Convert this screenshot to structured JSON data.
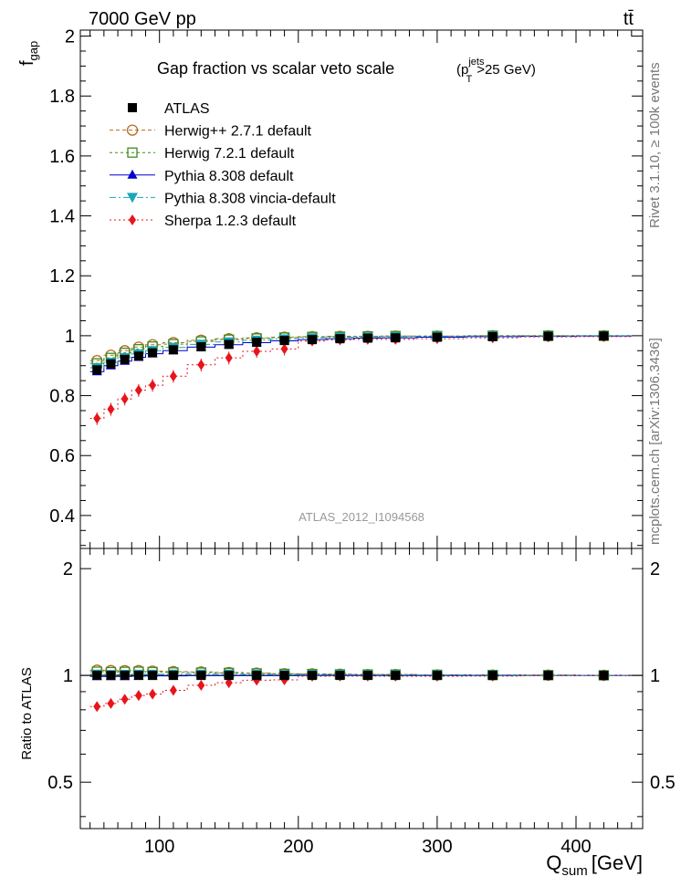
{
  "header": {
    "left": "7000 GeV pp",
    "right": "tt̄"
  },
  "side_texts": {
    "rivet": "Rivet 3.1.10, ≥ 100k events",
    "mcplots": "mcplots.cern.ch [arXiv:1306.3436]"
  },
  "legend": {
    "title": "Gap fraction vs scalar veto scale",
    "cut_p": "(p",
    "cut_sup": "jets",
    "cut_sub": "T",
    "cut_tail": ">25 GeV)"
  },
  "chart_data": {
    "type": "line",
    "watermark": "ATLAS_2012_I1094568",
    "x": [
      55,
      65,
      75,
      85,
      95,
      110,
      130,
      150,
      170,
      190,
      210,
      230,
      250,
      270,
      300,
      340,
      380,
      420
    ],
    "xlabel": "Q",
    "xlabel_sub": "sum",
    "xlabel_unit": "[GeV]",
    "xlim": [
      43,
      448
    ],
    "xticks": [
      100,
      200,
      300,
      400
    ],
    "main": {
      "ylabel": "f",
      "ylabel_sub": "gap",
      "ylim": [
        0.29,
        2.02
      ],
      "yticks": [
        0.4,
        0.6,
        0.8,
        1,
        1.2,
        1.4,
        1.6,
        1.8,
        2
      ]
    },
    "ratio": {
      "ylabel": "Ratio to ATLAS",
      "ylim": [
        0.37,
        2.28
      ],
      "yticks": [
        0.5,
        1,
        2
      ]
    },
    "series": [
      {
        "name": "ATLAS",
        "color": "#000000",
        "marker": "square-filled",
        "values": [
          0.886,
          0.906,
          0.921,
          0.932,
          0.943,
          0.953,
          0.963,
          0.971,
          0.978,
          0.984,
          0.987,
          0.99,
          0.992,
          0.993,
          0.995,
          0.997,
          0.998,
          0.999
        ]
      },
      {
        "name": "Herwig++ 2.7.1 default",
        "color": "#b86a1e",
        "marker": "circle-open",
        "values": [
          0.917,
          0.935,
          0.95,
          0.962,
          0.97,
          0.977,
          0.985,
          0.99,
          0.993,
          0.995,
          0.997,
          0.998,
          0.998,
          0.999,
          0.999,
          1.0,
          1.0,
          1.0
        ]
      },
      {
        "name": "Herwig 7.2.1 default",
        "color": "#3d8c1e",
        "marker": "square-open",
        "values": [
          0.908,
          0.926,
          0.943,
          0.955,
          0.964,
          0.972,
          0.981,
          0.987,
          0.991,
          0.994,
          0.996,
          0.997,
          0.998,
          0.999,
          0.999,
          1.0,
          1.0,
          1.0
        ]
      },
      {
        "name": "Pythia 8.308 default",
        "color": "#0000cc",
        "marker": "triangle-up",
        "values": [
          0.88,
          0.9,
          0.915,
          0.928,
          0.94,
          0.95,
          0.962,
          0.97,
          0.977,
          0.983,
          0.987,
          0.99,
          0.992,
          0.993,
          0.995,
          0.997,
          0.998,
          0.999
        ]
      },
      {
        "name": "Pythia 8.308 vincia-default",
        "color": "#1aa6b8",
        "marker": "triangle-down",
        "values": [
          0.893,
          0.911,
          0.927,
          0.939,
          0.95,
          0.961,
          0.971,
          0.979,
          0.985,
          0.989,
          0.993,
          0.995,
          0.996,
          0.997,
          0.998,
          0.999,
          0.999,
          1.0
        ]
      },
      {
        "name": "Sherpa 1.2.3 default",
        "color": "#e8141c",
        "marker": "diamond",
        "values": [
          0.724,
          0.755,
          0.789,
          0.818,
          0.835,
          0.865,
          0.903,
          0.926,
          0.948,
          0.956,
          0.982,
          0.986,
          0.988,
          0.988,
          0.99,
          0.993,
          0.996,
          0.997
        ]
      }
    ]
  }
}
